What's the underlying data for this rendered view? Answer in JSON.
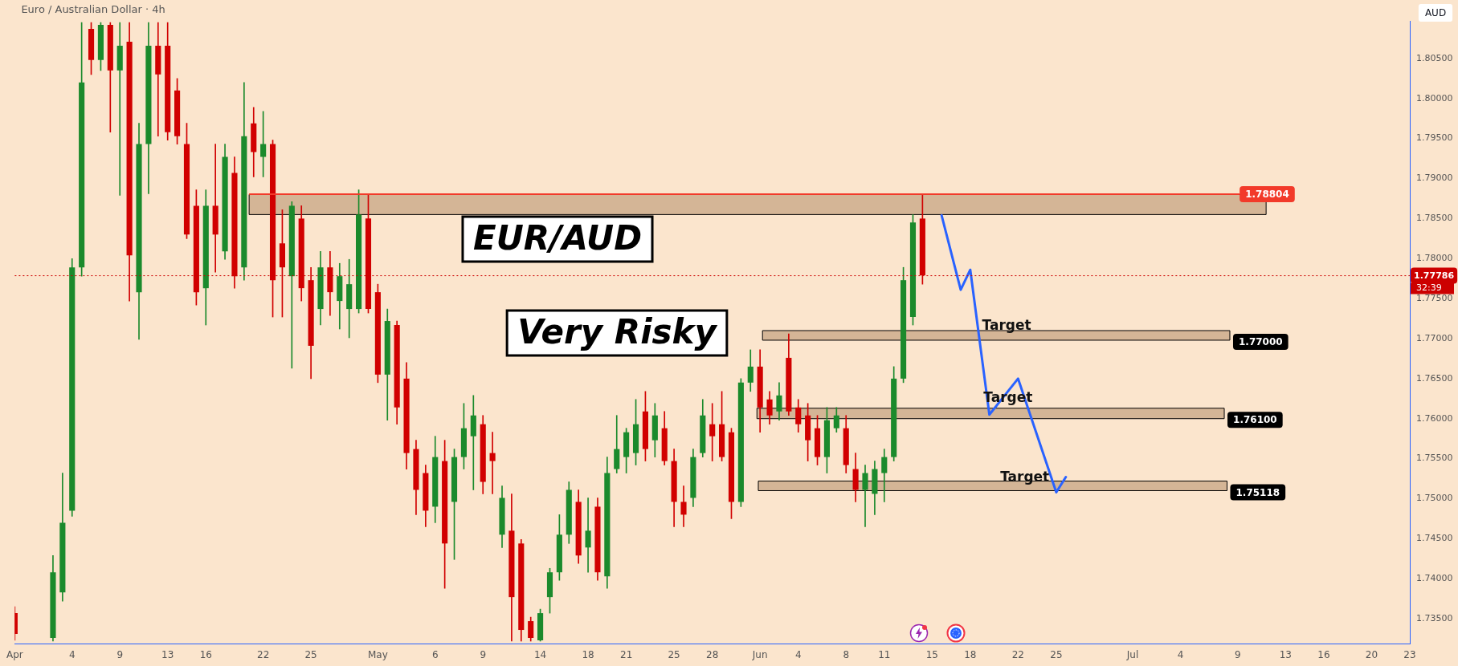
{
  "chart_data": {
    "type": "candlestick",
    "title": "Euro / Australian Dollar · 4h",
    "categories": [
      "Apr",
      null,
      null,
      null,
      null,
      null,
      "4",
      null,
      null,
      null,
      null,
      "9",
      null,
      null,
      null,
      null,
      "13",
      null,
      null,
      null,
      "16",
      null,
      null,
      null,
      null,
      null,
      "22",
      null,
      null,
      null,
      null,
      "25",
      null,
      null,
      null,
      null,
      null,
      null,
      "May",
      null,
      null,
      null,
      null,
      null,
      "6",
      null,
      null,
      null,
      null,
      "9",
      null,
      null,
      null,
      null,
      null,
      "14",
      null,
      null,
      null,
      null,
      "18",
      null,
      null,
      null,
      "21",
      null,
      null,
      null,
      null,
      "25",
      null,
      null,
      null,
      "28",
      null,
      null,
      null,
      null,
      "Jun",
      null,
      null,
      null,
      "4",
      null,
      null,
      null,
      null,
      "8",
      null,
      null,
      null,
      "11",
      null,
      null,
      null,
      null,
      "15",
      null,
      null,
      null,
      "18",
      null,
      null,
      null,
      null,
      "22",
      null,
      null,
      null,
      "25",
      null,
      null,
      null,
      null,
      null,
      null,
      null,
      "Jul",
      null,
      null,
      null,
      null,
      "4",
      null,
      null,
      null,
      null,
      null,
      "9",
      null,
      null,
      null,
      null,
      "13",
      null,
      null,
      null,
      "16",
      null,
      null,
      null,
      null,
      "20",
      null,
      null,
      null,
      "23"
    ],
    "series": [
      {
        "type": "candlestick",
        "ohlc": [
          [
            1.7357,
            1.7365,
            1.7323,
            1.7331
          ],
          null,
          null,
          null,
          [
            1.7326,
            1.7429,
            1.7322,
            1.7408
          ],
          [
            1.7383,
            1.7532,
            1.7372,
            1.747
          ],
          [
            1.7485,
            1.78,
            1.7478,
            1.7789
          ],
          [
            1.7789,
            1.8095,
            1.7778,
            1.802
          ],
          [
            1.8087,
            1.8095,
            1.803,
            1.8048
          ],
          [
            1.8048,
            1.8095,
            1.8035,
            1.8092
          ],
          [
            1.8092,
            1.8095,
            1.7958,
            1.8035
          ],
          [
            1.8035,
            1.8095,
            1.7879,
            1.8066
          ],
          [
            1.8071,
            1.8095,
            1.7747,
            1.7804
          ],
          [
            1.7758,
            1.7969,
            1.7699,
            1.7943
          ],
          [
            1.7943,
            1.8095,
            1.7881,
            1.8066
          ],
          [
            1.8066,
            1.8095,
            1.7953,
            1.803
          ],
          [
            1.8066,
            1.8095,
            1.7948,
            1.7958
          ],
          [
            1.801,
            1.8025,
            1.7943,
            1.7953
          ],
          [
            1.7943,
            1.7969,
            1.7825,
            1.783
          ],
          [
            1.7866,
            1.7886,
            1.7742,
            1.7758
          ],
          [
            1.7763,
            1.7886,
            1.7717,
            1.7866
          ],
          [
            1.7866,
            1.7943,
            1.7783,
            1.783
          ],
          [
            1.7809,
            1.7943,
            1.7799,
            1.7927
          ],
          [
            1.7907,
            1.7927,
            1.7763,
            1.7778
          ],
          [
            1.7789,
            1.802,
            1.7773,
            1.7953
          ],
          [
            1.7969,
            1.7989,
            1.7902,
            1.7933
          ],
          [
            1.7927,
            1.7984,
            1.7902,
            1.7943
          ],
          [
            1.7943,
            1.7948,
            1.7727,
            1.7773
          ],
          [
            1.7819,
            1.7861,
            1.7727,
            1.7789
          ],
          [
            1.7778,
            1.7871,
            1.7663,
            1.7866
          ],
          [
            1.785,
            1.7866,
            1.7747,
            1.7763
          ],
          [
            1.7773,
            1.7789,
            1.765,
            1.7691
          ],
          [
            1.7737,
            1.7809,
            1.7717,
            1.7789
          ],
          [
            1.7789,
            1.7809,
            1.7729,
            1.7758
          ],
          [
            1.7747,
            1.7794,
            1.7712,
            1.7778
          ],
          [
            1.7737,
            1.7799,
            1.7701,
            1.7768
          ],
          [
            1.7737,
            1.7886,
            1.7732,
            1.7855
          ],
          [
            1.785,
            1.7881,
            1.7732,
            1.7737
          ],
          [
            1.7758,
            1.7768,
            1.7645,
            1.7655
          ],
          [
            1.7655,
            1.7737,
            1.7598,
            1.7722
          ],
          [
            1.7717,
            1.7722,
            1.7593,
            1.7614
          ],
          [
            1.765,
            1.767,
            1.7537,
            1.7557
          ],
          [
            1.7562,
            1.7573,
            1.748,
            1.7511
          ],
          [
            1.7532,
            1.7542,
            1.7465,
            1.7485
          ],
          [
            1.749,
            1.7578,
            1.747,
            1.7552
          ],
          [
            1.7547,
            1.7573,
            1.7388,
            1.7444
          ],
          [
            1.7496,
            1.7562,
            1.7424,
            1.7552
          ],
          [
            1.7552,
            1.7619,
            1.7537,
            1.7588
          ],
          [
            1.7578,
            1.7629,
            1.7511,
            1.7604
          ],
          [
            1.7593,
            1.7604,
            1.7506,
            1.7521
          ],
          [
            1.7557,
            1.7583,
            1.7506,
            1.7547
          ],
          [
            1.7455,
            1.7516,
            1.7439,
            1.7501
          ],
          [
            1.746,
            1.7506,
            1.7322,
            1.7377
          ],
          [
            1.7444,
            1.7449,
            1.7322,
            1.7336
          ],
          [
            1.7347,
            1.7352,
            1.7322,
            1.7326
          ],
          [
            1.7323,
            1.7362,
            1.7322,
            1.7357
          ],
          [
            1.7377,
            1.7413,
            1.7357,
            1.7408
          ],
          [
            1.7408,
            1.748,
            1.7398,
            1.7455
          ],
          [
            1.7455,
            1.7521,
            1.7444,
            1.7511
          ],
          [
            1.7496,
            1.7511,
            1.7419,
            1.7429
          ],
          [
            1.7439,
            1.7501,
            1.7408,
            1.746
          ],
          [
            1.749,
            1.7501,
            1.7398,
            1.7408
          ],
          [
            1.7403,
            1.7552,
            1.7388,
            1.7532
          ],
          [
            1.7537,
            1.7604,
            1.7532,
            1.7562
          ],
          [
            1.7552,
            1.7588,
            1.7532,
            1.7583
          ],
          [
            1.7557,
            1.7624,
            1.7542,
            1.7593
          ],
          [
            1.7609,
            1.7634,
            1.7547,
            1.7562
          ],
          [
            1.7573,
            1.7619,
            1.7552,
            1.7604
          ],
          [
            1.7588,
            1.7609,
            1.7542,
            1.7547
          ],
          [
            1.7547,
            1.7562,
            1.7465,
            1.7496
          ],
          [
            1.7496,
            1.7516,
            1.7465,
            1.748
          ],
          [
            1.7501,
            1.7562,
            1.749,
            1.7552
          ],
          [
            1.7557,
            1.7624,
            1.7552,
            1.7604
          ],
          [
            1.7593,
            1.7619,
            1.7547,
            1.7578
          ],
          [
            1.7593,
            1.7634,
            1.7547,
            1.7552
          ],
          [
            1.7583,
            1.7588,
            1.7475,
            1.7496
          ],
          [
            1.7496,
            1.765,
            1.749,
            1.7645
          ],
          [
            1.7645,
            1.7686,
            1.7634,
            1.7665
          ],
          [
            1.7665,
            1.7686,
            1.7583,
            1.7614
          ],
          [
            1.7624,
            1.7634,
            1.7593,
            1.7604
          ],
          [
            1.7609,
            1.7645,
            1.7598,
            1.7629
          ],
          [
            1.7676,
            1.7706,
            1.7604,
            1.7609
          ],
          [
            1.7614,
            1.7624,
            1.7583,
            1.7593
          ],
          [
            1.7604,
            1.7619,
            1.7547,
            1.7573
          ],
          [
            1.7588,
            1.7604,
            1.7542,
            1.7552
          ],
          [
            1.7552,
            1.7614,
            1.7532,
            1.7598
          ],
          [
            1.7588,
            1.7614,
            1.7583,
            1.7604
          ],
          [
            1.7588,
            1.7604,
            1.7532,
            1.7542
          ],
          [
            1.7537,
            1.7557,
            1.7496,
            1.7511
          ],
          [
            1.7511,
            1.7542,
            1.7465,
            1.7532
          ],
          [
            1.7506,
            1.7547,
            1.748,
            1.7537
          ],
          [
            1.7532,
            1.7562,
            1.7496,
            1.7552
          ],
          [
            1.7552,
            1.7665,
            1.7547,
            1.765
          ],
          [
            1.765,
            1.7789,
            1.7645,
            1.7773
          ],
          [
            1.7727,
            1.7855,
            1.7717,
            1.7845
          ],
          [
            1.785,
            1.7881,
            1.7768,
            1.7779
          ],
          null,
          null,
          null,
          null,
          null,
          null,
          null,
          null,
          null,
          null,
          null,
          null,
          null,
          null,
          null,
          null,
          null,
          null,
          null,
          null,
          null,
          null,
          null,
          null,
          null,
          null,
          null,
          null,
          null,
          null,
          null,
          null,
          null,
          null,
          null,
          null,
          null,
          null,
          null,
          null,
          null,
          null,
          null,
          null,
          null,
          null,
          null,
          null,
          null,
          null,
          null
        ],
        "colors": [
          "#d10000",
          null,
          null,
          null,
          "#1b8a2c",
          "#1b8a2c",
          "#1b8a2c",
          "#1b8a2c",
          "#d10000",
          "#1b8a2c",
          "#d10000",
          "#1b8a2c",
          "#d10000",
          "#1b8a2c",
          "#1b8a2c",
          "#d10000",
          "#d10000",
          "#d10000",
          "#d10000",
          "#d10000",
          "#1b8a2c",
          "#d10000",
          "#1b8a2c",
          "#d10000",
          "#1b8a2c",
          "#d10000",
          "#1b8a2c",
          "#d10000",
          "#d10000",
          "#1b8a2c",
          "#d10000",
          "#d10000",
          "#1b8a2c",
          "#d10000",
          "#1b8a2c",
          "#1b8a2c",
          "#1b8a2c",
          "#d10000",
          "#d10000",
          "#1b8a2c",
          "#d10000",
          "#d10000",
          "#d10000",
          "#d10000",
          "#1b8a2c",
          "#d10000",
          "#1b8a2c",
          "#1b8a2c",
          "#1b8a2c",
          "#d10000",
          "#d10000",
          "#1b8a2c",
          "#d10000",
          "#d10000",
          "#d10000",
          "#1b8a2c",
          "#1b8a2c",
          "#1b8a2c",
          "#1b8a2c",
          "#d10000",
          "#1b8a2c",
          "#d10000",
          "#1b8a2c",
          "#1b8a2c",
          "#1b8a2c",
          "#1b8a2c",
          "#d10000",
          "#1b8a2c",
          "#d10000",
          "#d10000",
          "#d10000",
          "#1b8a2c",
          "#1b8a2c",
          "#d10000",
          "#d10000",
          "#d10000",
          "#1b8a2c",
          "#1b8a2c",
          "#d10000",
          "#d10000",
          "#1b8a2c",
          "#d10000",
          "#d10000",
          "#d10000",
          "#d10000",
          "#1b8a2c",
          "#1b8a2c",
          "#d10000",
          "#d10000",
          "#1b8a2c",
          "#1b8a2c",
          "#1b8a2c",
          "#1b8a2c",
          "#1b8a2c",
          "#1b8a2c",
          "#d10000",
          null,
          null,
          null,
          null,
          null,
          null,
          null,
          null,
          null,
          null,
          null,
          null,
          null,
          null,
          null,
          null,
          null,
          null,
          null,
          null,
          null,
          null,
          null,
          null,
          null,
          null,
          null,
          null,
          null,
          null,
          null,
          null,
          null,
          null,
          null,
          null,
          null,
          null,
          null,
          null,
          null,
          null,
          null,
          null,
          null,
          null,
          null,
          null,
          null,
          null,
          null
        ]
      },
      {
        "type": "line",
        "color": "#2962ff",
        "values": [
          null,
          null,
          null,
          null,
          null,
          null,
          null,
          null,
          null,
          null,
          null,
          null,
          null,
          null,
          null,
          null,
          null,
          null,
          null,
          null,
          null,
          null,
          null,
          null,
          null,
          null,
          null,
          null,
          null,
          null,
          null,
          null,
          null,
          null,
          null,
          null,
          null,
          null,
          null,
          null,
          null,
          null,
          null,
          null,
          null,
          null,
          null,
          null,
          null,
          null,
          null,
          null,
          null,
          null,
          null,
          null,
          null,
          null,
          null,
          null,
          null,
          null,
          null,
          null,
          null,
          null,
          null,
          null,
          null,
          null,
          null,
          null,
          null,
          null,
          null,
          null,
          null,
          null,
          null,
          null,
          null,
          null,
          null,
          null,
          null,
          null,
          null,
          null,
          null,
          null,
          null,
          null,
          null,
          null,
          null,
          null,
          null,
          1.7854,
          null,
          1.7761,
          1.7786,
          null,
          1.7605,
          null,
          null,
          1.765,
          null,
          null,
          null,
          1.7508,
          1.7527,
          null,
          null,
          null,
          null,
          null,
          null,
          null,
          null,
          null,
          null,
          null,
          null,
          null,
          null,
          null,
          null,
          null,
          null,
          null,
          null,
          null,
          null,
          null,
          null,
          null,
          null,
          null,
          null,
          null,
          null,
          null,
          null,
          null,
          null,
          null,
          null
        ]
      }
    ],
    "ylim": [
      1.7319,
      1.8097
    ],
    "yticks": [
      {
        "value": 1.735,
        "label": "1.73500"
      },
      {
        "value": 1.74,
        "label": "1.74000"
      },
      {
        "value": 1.745,
        "label": "1.74500"
      },
      {
        "value": 1.75,
        "label": "1.75000"
      },
      {
        "value": 1.755,
        "label": "1.75500"
      },
      {
        "value": 1.76,
        "label": "1.76000"
      },
      {
        "value": 1.765,
        "label": "1.76500"
      },
      {
        "value": 1.77,
        "label": "1.77000"
      },
      {
        "value": 1.775,
        "label": "1.77500"
      },
      {
        "value": 1.78,
        "label": "1.78000"
      },
      {
        "value": 1.785,
        "label": "1.78500"
      },
      {
        "value": 1.79,
        "label": "1.79000"
      },
      {
        "value": 1.795,
        "label": "1.79500"
      },
      {
        "value": 1.8,
        "label": "1.80000"
      },
      {
        "value": 1.805,
        "label": "1.80500"
      }
    ],
    "bands": [
      {
        "axis": "y",
        "from": 1.7855,
        "to": 1.788,
        "color": "#d4b596"
      },
      {
        "axis": "y",
        "from": 1.7698,
        "to": 1.771,
        "label": "1.77000",
        "color": "#d4b596"
      },
      {
        "axis": "y",
        "from": 1.76,
        "to": 1.7613,
        "label": "1.76100",
        "color": "#d4b596"
      },
      {
        "axis": "y",
        "from": 1.751,
        "to": 1.7522,
        "label": "1.75118",
        "color": "#d4b596"
      }
    ],
    "ref_lines": [
      {
        "axis": "y",
        "value": 1.78804,
        "label": "1.78804",
        "color": "#f23a2a",
        "line_style": "solid"
      },
      {
        "axis": "y",
        "value": 1.77786,
        "label": "1.77786",
        "color": "#cc0000",
        "line_style": "dotted"
      }
    ],
    "annotations": [
      "EUR/AUD",
      "Very Risky",
      "AUD",
      "32:39",
      {
        "text": "Target",
        "y": 1.7715
      },
      {
        "text": "Target",
        "y": 1.7625
      },
      {
        "text": "Target",
        "y": 1.7526
      }
    ],
    "legend": false
  }
}
